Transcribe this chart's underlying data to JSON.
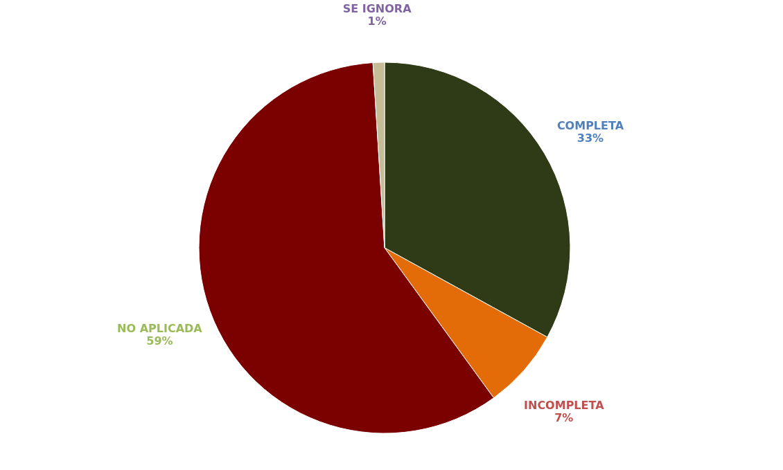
{
  "chart_data": {
    "type": "pie",
    "categories": [
      "COMPLETA",
      "INCOMPLETA",
      "NO APLICADA",
      "SE IGNORA"
    ],
    "values": [
      33,
      7,
      59,
      1
    ],
    "colors": [
      "#2e3b16",
      "#e36c09",
      "#7b0000",
      "#c4bd97"
    ],
    "value_labels": [
      "33%",
      "7%",
      "59%",
      "1%"
    ],
    "legend": false
  }
}
